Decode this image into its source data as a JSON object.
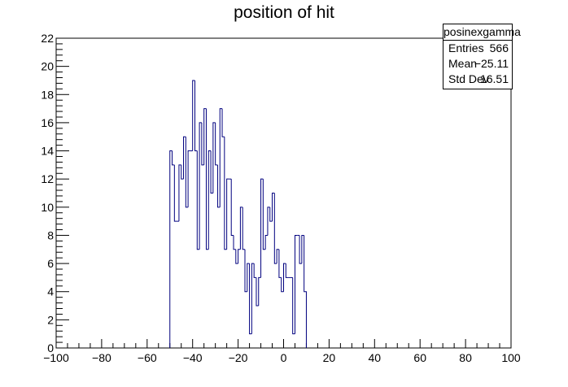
{
  "chart_data": {
    "type": "bar",
    "title": "position of hit",
    "xlabel": "",
    "ylabel": "",
    "xlim": [
      -100,
      100
    ],
    "ylim": [
      0,
      22
    ],
    "x_ticks": [
      -100,
      -80,
      -60,
      -40,
      -20,
      0,
      20,
      40,
      60,
      80,
      100
    ],
    "x_tick_labels": [
      "−100",
      "−80",
      "−60",
      "−40",
      "−20",
      "0",
      "20",
      "40",
      "60",
      "80",
      "100"
    ],
    "y_ticks": [
      0,
      2,
      4,
      6,
      8,
      10,
      12,
      14,
      16,
      18,
      20,
      22
    ],
    "y_tick_labels": [
      "0",
      "2",
      "4",
      "6",
      "8",
      "10",
      "12",
      "14",
      "16",
      "18",
      "20",
      "22"
    ],
    "bin_start": -50,
    "bin_width": 1,
    "counts": [
      14,
      13,
      9,
      9,
      13,
      12,
      15,
      10,
      14,
      14,
      19,
      14,
      7,
      16,
      13,
      17,
      7,
      14,
      11,
      16,
      13,
      10,
      17,
      15,
      7,
      12,
      12,
      8,
      7,
      6,
      7,
      10,
      7,
      4,
      6,
      1,
      6,
      5,
      3,
      5,
      12,
      7,
      8,
      10,
      9,
      11,
      6,
      7,
      5,
      4,
      6,
      5,
      5,
      5,
      1,
      8,
      8,
      6,
      8,
      4
    ],
    "line_color": "#00007f",
    "grid": false,
    "legend": "none"
  },
  "stats_box": {
    "title": "posinexgamma",
    "rows": [
      {
        "label": "Entries",
        "value": "566"
      },
      {
        "label": "Mean",
        "value": "−25.11"
      },
      {
        "label": "Std Dev",
        "value": "16.51"
      }
    ]
  }
}
